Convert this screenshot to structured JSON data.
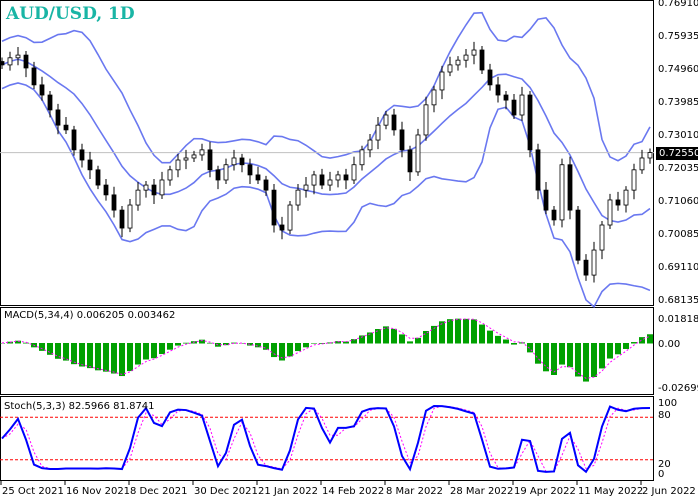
{
  "chart_data": {
    "type": "candlestick",
    "title": "AUD/USD, 1D",
    "last_price": "0.72550",
    "price_axis": {
      "ticks": [
        "0.76910",
        "0.75935",
        "0.74960",
        "0.73985",
        "0.73010",
        "0.72035",
        "0.71060",
        "0.70085",
        "0.69110",
        "0.68135"
      ],
      "ylim": [
        0.68135,
        0.7691
      ]
    },
    "dates": [
      "25 Oct 2021",
      "16 Nov 2021",
      "8 Dec 2021",
      "30 Dec 2021",
      "21 Jan 2022",
      "14 Feb 2022",
      "8 Mar 2022",
      "28 Mar 2022",
      "19 Apr 2022",
      "11 May 2022",
      "2 Jun 2022"
    ],
    "close": [
      0.7514,
      0.7535,
      0.7543,
      0.7505,
      0.7455,
      0.7425,
      0.7381,
      0.7336,
      0.7322,
      0.7263,
      0.7233,
      0.7204,
      0.7159,
      0.713,
      0.7085,
      0.7032,
      0.71,
      0.7144,
      0.7159,
      0.713,
      0.7174,
      0.7204,
      0.7233,
      0.7239,
      0.7248,
      0.7263,
      0.7204,
      0.7174,
      0.7219,
      0.7239,
      0.7219,
      0.7189,
      0.7174,
      0.7144,
      0.7041,
      0.7026,
      0.71,
      0.7144,
      0.7159,
      0.7189,
      0.7159,
      0.7174,
      0.7189,
      0.7174,
      0.7219,
      0.7263,
      0.7292,
      0.7336,
      0.7366,
      0.7322,
      0.7263,
      0.7198,
      0.7307,
      0.7396,
      0.744,
      0.7493,
      0.7514,
      0.7528,
      0.7543,
      0.7558,
      0.7499,
      0.7455,
      0.7425,
      0.741,
      0.7366,
      0.7425,
      0.7263,
      0.7144,
      0.7085,
      0.7056,
      0.7219,
      0.7085,
      0.6937,
      0.6893,
      0.6967,
      0.7041,
      0.7115,
      0.71,
      0.7144,
      0.7204,
      0.7239,
      0.7255
    ],
    "overlay": "Bollinger Bands",
    "macd": {
      "label": "MACD(5,34,4) 0.006205 0.003462",
      "ticks": [
        "0.018188",
        "0.00",
        "-0.026994"
      ],
      "ylim": [
        -0.026994,
        0.018188
      ],
      "colors": {
        "histogram": "#00a000",
        "signal": "#ff00ff"
      }
    },
    "stoch": {
      "label": "Stoch(5,3,3) 82.5966 81.8741",
      "ticks": [
        "100",
        "80",
        "20",
        "0"
      ],
      "levels": [
        80,
        20
      ],
      "colors": {
        "main": "#0000ff",
        "signal": "#ff00ff",
        "levels": "#ff0000"
      }
    },
    "colors": {
      "title": "#19b5a5",
      "bands": "#6a78f0",
      "bull": "#ffffff",
      "bear": "#000000"
    }
  }
}
